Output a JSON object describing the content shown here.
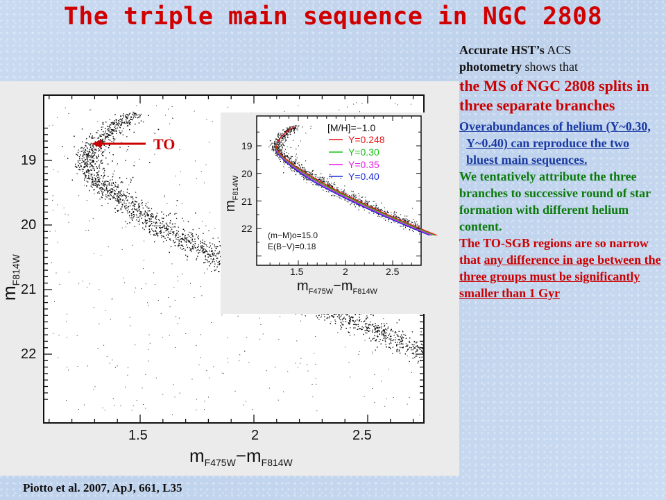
{
  "slide": {
    "title": "The triple main sequence in NGC 2808"
  },
  "main_plot": {
    "xlabel": "m",
    "xlabel_sub1": "F475W",
    "xlabel_minus": "−m",
    "xlabel_sub2": "F814W",
    "ylabel": "m",
    "ylabel_sub": "F814W",
    "x_ticks": [
      "1.5",
      "2",
      "2.5"
    ],
    "y_ticks": [
      "19",
      "20",
      "21",
      "22"
    ],
    "to_label": "TO"
  },
  "inset_plot": {
    "legend_header": "[M/H]=−1.0",
    "legend": [
      {
        "label": "Y=0.248",
        "color": "#e8171b"
      },
      {
        "label": "Y=0.30",
        "color": "#16c116"
      },
      {
        "label": "Y=0.35",
        "color": "#e61ce6"
      },
      {
        "label": "Y=0.40",
        "color": "#1a2ad8"
      }
    ],
    "annotation1": "(m−M)o=15.0",
    "annotation2": "E(B−V)=0.18",
    "x_ticks": [
      "1.5",
      "2",
      "2.5"
    ],
    "y_ticks": [
      "19",
      "20",
      "21",
      "22"
    ],
    "xlabel": "m",
    "xlabel_sub1": "F475W",
    "xlabel_minus": "−m",
    "xlabel_sub2": "F814W",
    "ylabel": "m",
    "ylabel_sub": "F814W"
  },
  "citation": "Piotto et al. 2007, ApJ, 661, L35",
  "text": {
    "intro_b1": "Accurate HST’s",
    "intro_n1": " ACS",
    "intro_b2": "photometry",
    "intro_n2": " shows that",
    "red_big": "the MS of NGC 2808 splits in three separate branches",
    "blue": "Overabundances of helium (Y~0.30, Y~0.40) can reproduce the two bluest main sequences.",
    "green": "We tentatively attribute the three branches to successive round of star formation with different helium content.",
    "red_a": "The TO-SGB regions are so narrow that ",
    "red_u": "any difference in age between the three groups must be significantly smaller than 1 Gyr"
  },
  "colors": {
    "title": "#d10000",
    "arrow": "#cc0000"
  }
}
